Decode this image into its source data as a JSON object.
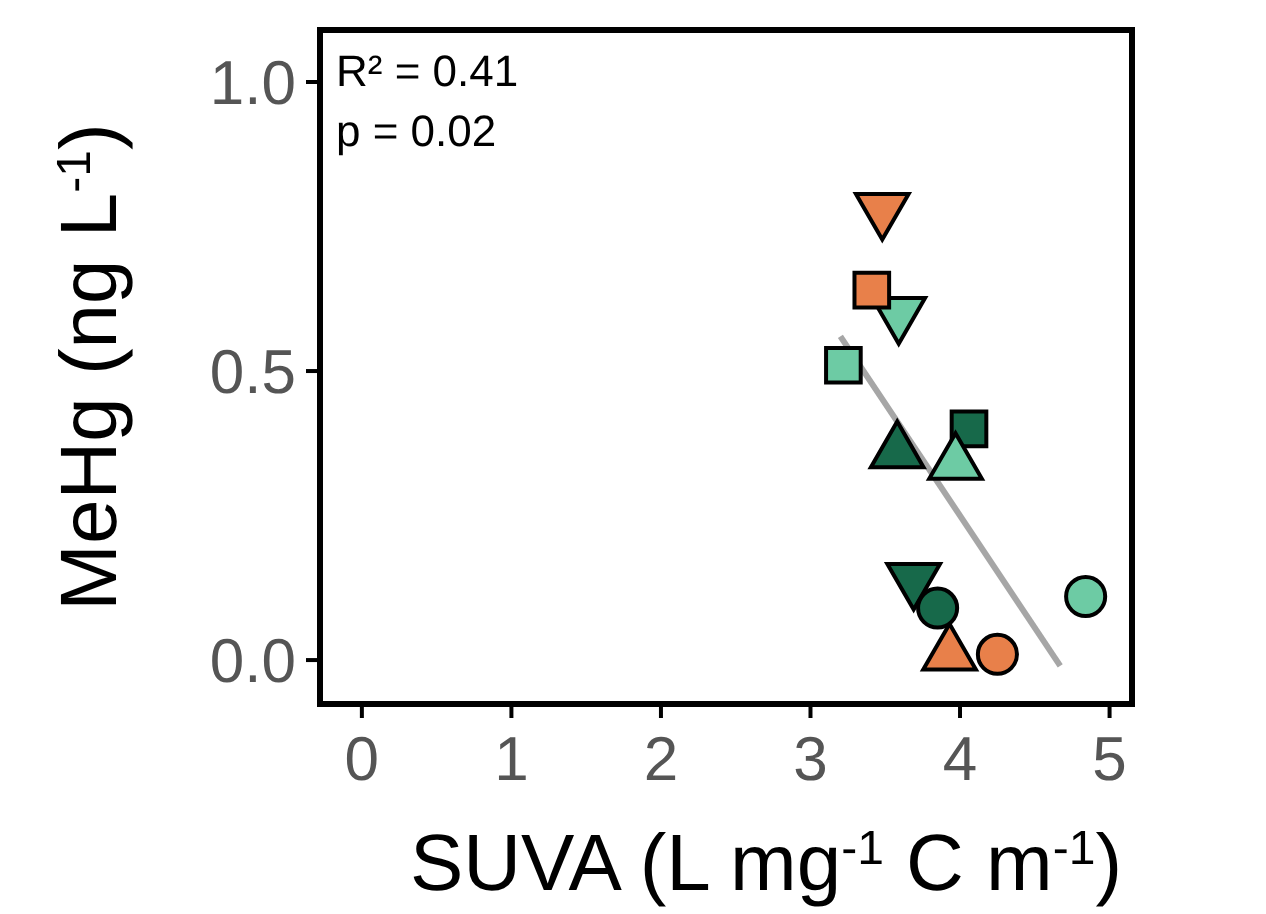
{
  "chart_data": {
    "type": "scatter",
    "xlabel": "SUVA (L mg$^{-1}$ C m$^{-1}$)",
    "ylabel": "MeHg (ng L$^{-1}$)",
    "xlim": [
      -0.28,
      5.15
    ],
    "ylim": [
      -0.076,
      1.09
    ],
    "xticks": [
      0,
      1,
      2,
      3,
      4,
      5
    ],
    "yticks": [
      {
        "value": 0,
        "label": "0.0"
      },
      0.5,
      {
        "value": 1,
        "label": "1.0"
      }
    ],
    "grid": false,
    "annotations": [
      "R² = 0.41",
      "p = 0.02"
    ],
    "series": [
      {
        "type": "line",
        "color": "#a6a6a6",
        "x": [
          3.2,
          4.67
        ],
        "values": [
          0.56,
          -0.01
        ]
      },
      {
        "marker": "triangle-down",
        "x": [
          3.48,
          3.59,
          3.69
        ],
        "values": [
          0.78,
          0.6,
          0.14
        ],
        "colors": [
          "#e8804a",
          "#6dcba4",
          "#17694a"
        ]
      },
      {
        "marker": "square",
        "x": [
          3.41,
          3.22,
          4.06
        ],
        "values": [
          0.64,
          0.51,
          0.4
        ],
        "colors": [
          "#e8804a",
          "#6dcba4",
          "#17694a"
        ]
      },
      {
        "marker": "triangle",
        "x": [
          3.58,
          3.97,
          3.93
        ],
        "values": [
          0.36,
          0.34,
          0.01
        ],
        "colors": [
          "#17694a",
          "#6dcba4",
          "#e8804a"
        ]
      },
      {
        "marker": "circle",
        "x": [
          3.85,
          4.84,
          4.25
        ],
        "values": [
          0.09,
          0.11,
          0.01
        ],
        "colors": [
          "#17694a",
          "#6dcba4",
          "#e8804a"
        ]
      }
    ]
  }
}
